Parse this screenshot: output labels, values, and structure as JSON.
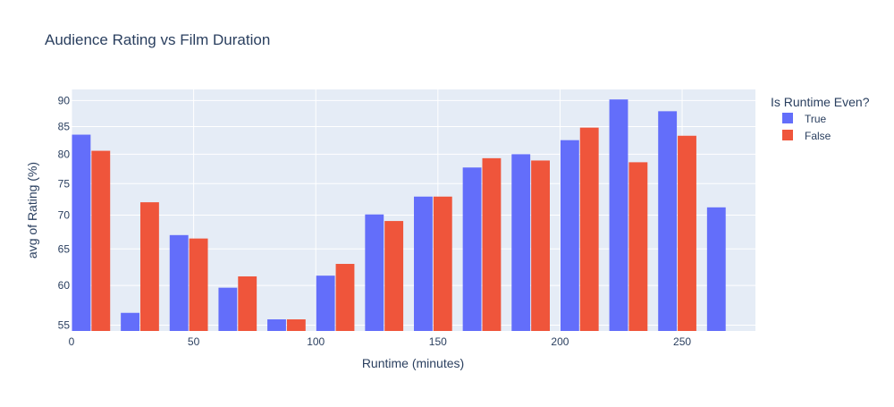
{
  "chart_data": {
    "type": "bar",
    "title": "Audience Rating vs Film Duration",
    "xlabel": "Runtime (minutes)",
    "ylabel": "avg of Rating (%)",
    "y_scale": "log",
    "xlim": [
      0,
      280
    ],
    "ylim": [
      54.3,
      92.2
    ],
    "x_ticks": [
      0,
      50,
      100,
      150,
      200,
      250
    ],
    "y_ticks": [
      55,
      60,
      65,
      70,
      75,
      80,
      85,
      90
    ],
    "grid": true,
    "legend": {
      "title": "Is Runtime Even?",
      "position": "right"
    },
    "series": [
      {
        "name": "True",
        "color": "#636efa",
        "x": [
          4,
          24,
          44,
          64,
          84,
          104,
          124,
          144,
          164,
          184,
          204,
          224,
          244,
          264
        ],
        "values": [
          83.5,
          56.5,
          67.0,
          59.7,
          55.7,
          61.3,
          70.1,
          72.9,
          77.7,
          80.0,
          82.5,
          90.2,
          87.9,
          71.2
        ]
      },
      {
        "name": "False",
        "color": "#ef553b",
        "x": [
          12,
          32,
          52,
          72,
          92,
          112,
          132,
          152,
          172,
          192,
          212,
          232,
          252
        ],
        "values": [
          80.6,
          72.0,
          66.5,
          61.2,
          55.7,
          62.9,
          69.1,
          72.9,
          79.3,
          78.9,
          84.8,
          78.6,
          83.3
        ]
      }
    ]
  }
}
